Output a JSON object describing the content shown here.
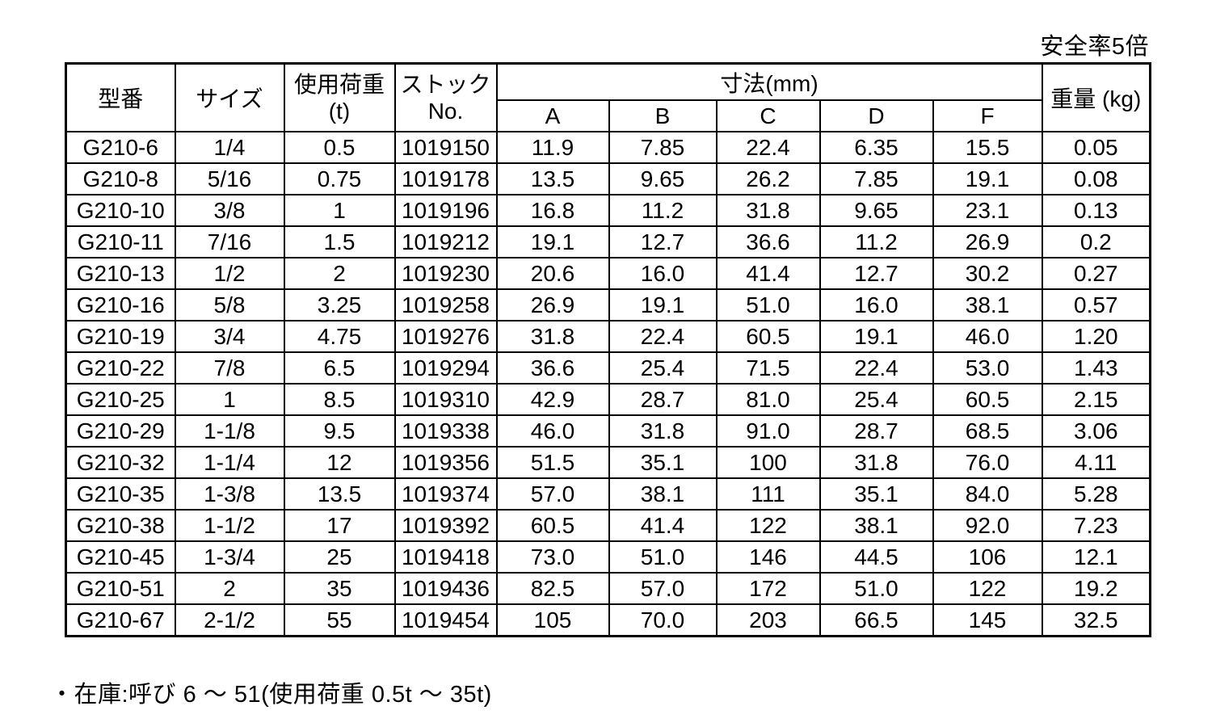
{
  "page": {
    "safety_note": "安全率5倍",
    "stock_note": "・在庫:呼び 6 〜 51(使用荷重 0.5t 〜 35t)"
  },
  "table": {
    "headers": {
      "model": "型番",
      "size": "サイズ",
      "load_line1": "使用荷重",
      "load_line2": "(t)",
      "stock_line1": "ストック",
      "stock_line2": "No.",
      "dimensions_group": "寸法(mm)",
      "dim_cols": [
        "A",
        "B",
        "C",
        "D",
        "F"
      ],
      "weight": "重量 (kg)"
    },
    "col_keys": [
      "model",
      "size",
      "load",
      "stock_no",
      "dim_a",
      "dim_b",
      "dim_c",
      "dim_d",
      "dim_f",
      "weight"
    ],
    "rows": [
      [
        "G210-6",
        "1/4",
        "0.5",
        "1019150",
        "11.9",
        "7.85",
        "22.4",
        "6.35",
        "15.5",
        "0.05"
      ],
      [
        "G210-8",
        "5/16",
        "0.75",
        "1019178",
        "13.5",
        "9.65",
        "26.2",
        "7.85",
        "19.1",
        "0.08"
      ],
      [
        "G210-10",
        "3/8",
        "1",
        "1019196",
        "16.8",
        "11.2",
        "31.8",
        "9.65",
        "23.1",
        "0.13"
      ],
      [
        "G210-11",
        "7/16",
        "1.5",
        "1019212",
        "19.1",
        "12.7",
        "36.6",
        "11.2",
        "26.9",
        "0.2"
      ],
      [
        "G210-13",
        "1/2",
        "2",
        "1019230",
        "20.6",
        "16.0",
        "41.4",
        "12.7",
        "30.2",
        "0.27"
      ],
      [
        "G210-16",
        "5/8",
        "3.25",
        "1019258",
        "26.9",
        "19.1",
        "51.0",
        "16.0",
        "38.1",
        "0.57"
      ],
      [
        "G210-19",
        "3/4",
        "4.75",
        "1019276",
        "31.8",
        "22.4",
        "60.5",
        "19.1",
        "46.0",
        "1.20"
      ],
      [
        "G210-22",
        "7/8",
        "6.5",
        "1019294",
        "36.6",
        "25.4",
        "71.5",
        "22.4",
        "53.0",
        "1.43"
      ],
      [
        "G210-25",
        "1",
        "8.5",
        "1019310",
        "42.9",
        "28.7",
        "81.0",
        "25.4",
        "60.5",
        "2.15"
      ],
      [
        "G210-29",
        "1-1/8",
        "9.5",
        "1019338",
        "46.0",
        "31.8",
        "91.0",
        "28.7",
        "68.5",
        "3.06"
      ],
      [
        "G210-32",
        "1-1/4",
        "12",
        "1019356",
        "51.5",
        "35.1",
        "100",
        "31.8",
        "76.0",
        "4.11"
      ],
      [
        "G210-35",
        "1-3/8",
        "13.5",
        "1019374",
        "57.0",
        "38.1",
        "111",
        "35.1",
        "84.0",
        "5.28"
      ],
      [
        "G210-38",
        "1-1/2",
        "17",
        "1019392",
        "60.5",
        "41.4",
        "122",
        "38.1",
        "92.0",
        "7.23"
      ],
      [
        "G210-45",
        "1-3/4",
        "25",
        "1019418",
        "73.0",
        "51.0",
        "146",
        "44.5",
        "106",
        "12.1"
      ],
      [
        "G210-51",
        "2",
        "35",
        "1019436",
        "82.5",
        "57.0",
        "172",
        "51.0",
        "122",
        "19.2"
      ],
      [
        "G210-67",
        "2-1/2",
        "55",
        "1019454",
        "105",
        "70.0",
        "203",
        "66.5",
        "145",
        "32.5"
      ]
    ]
  }
}
